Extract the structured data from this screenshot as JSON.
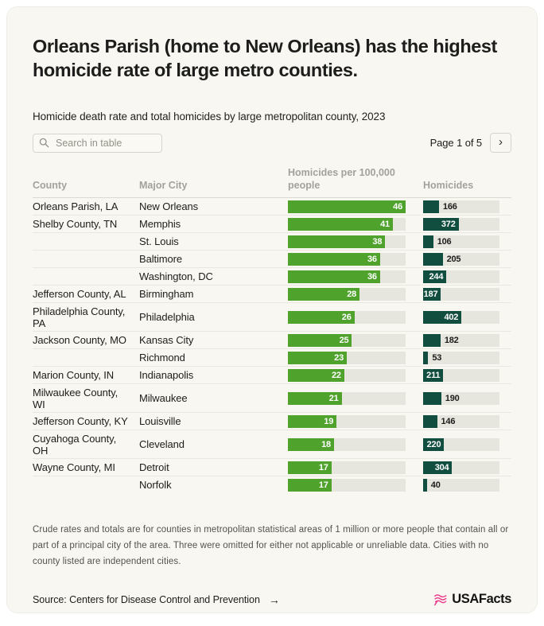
{
  "page": {
    "title": "Orleans Parish (home to New Orleans) has the highest homicide rate of large metro counties.",
    "subtitle": "Homicide death rate and total homicides by large metropolitan county, 2023",
    "search": {
      "placeholder": "Search in table"
    },
    "pagination": {
      "label": "Page 1 of 5",
      "next_glyph": "›"
    },
    "footnote": "Crude rates and totals are for counties in metropolitan statistical areas of 1 million or more people that contain all or part of a principal city of the area. Three were omitted for either not applicable or unreliable data. Cities with no county listed are independent cities.",
    "source": {
      "label": "Source: Centers for Disease Control and Prevention",
      "arrow_glyph": "→"
    },
    "brand": {
      "name": "USAFacts",
      "flag_color": "#ee3a8c"
    }
  },
  "colors": {
    "card_bg": "#f8f7f1",
    "rate_bar": "#4fa32c",
    "homicide_bar": "#114e3f",
    "bar_track": "#e6e5de"
  },
  "table": {
    "columns": [
      {
        "label": "County"
      },
      {
        "label": "Major City"
      },
      {
        "label": "Homicides per 100,000 people"
      },
      {
        "label": "Homicides"
      }
    ],
    "rows": [
      {
        "county": "Orleans Parish, LA",
        "city": "New Orleans",
        "rate": 46,
        "homicides": 166,
        "homicide_label_inside": false
      },
      {
        "county": "Shelby County, TN",
        "city": "Memphis",
        "rate": 41,
        "homicides": 372,
        "homicide_label_inside": true
      },
      {
        "county": "",
        "city": "St. Louis",
        "rate": 38,
        "homicides": 106,
        "homicide_label_inside": false
      },
      {
        "county": "",
        "city": "Baltimore",
        "rate": 36,
        "homicides": 205,
        "homicide_label_inside": false
      },
      {
        "county": "",
        "city": "Washington, DC",
        "rate": 36,
        "homicides": 244,
        "homicide_label_inside": true
      },
      {
        "county": "Jefferson County, AL",
        "city": "Birmingham",
        "rate": 28,
        "homicides": 187,
        "homicide_label_inside": true
      },
      {
        "county": "Philadelphia County, PA",
        "city": "Philadelphia",
        "rate": 26,
        "homicides": 402,
        "homicide_label_inside": true
      },
      {
        "county": "Jackson County, MO",
        "city": "Kansas City",
        "rate": 25,
        "homicides": 182,
        "homicide_label_inside": false
      },
      {
        "county": "",
        "city": "Richmond",
        "rate": 23,
        "homicides": 53,
        "homicide_label_inside": false
      },
      {
        "county": "Marion County, IN",
        "city": "Indianapolis",
        "rate": 22,
        "homicides": 211,
        "homicide_label_inside": true
      },
      {
        "county": "Milwaukee County, WI",
        "city": "Milwaukee",
        "rate": 21,
        "homicides": 190,
        "homicide_label_inside": false
      },
      {
        "county": "Jefferson County, KY",
        "city": "Louisville",
        "rate": 19,
        "homicides": 146,
        "homicide_label_inside": false
      },
      {
        "county": "Cuyahoga County, OH",
        "city": "Cleveland",
        "rate": 18,
        "homicides": 220,
        "homicide_label_inside": true
      },
      {
        "county": "Wayne County, MI",
        "city": "Detroit",
        "rate": 17,
        "homicides": 304,
        "homicide_label_inside": true
      },
      {
        "county": "",
        "city": "Norfolk",
        "rate": 17,
        "homicides": 40,
        "homicide_label_inside": false
      }
    ]
  },
  "chart_data": {
    "type": "bar",
    "title": "Homicide death rate and total homicides by large metropolitan county, 2023",
    "categories": [
      "New Orleans",
      "Memphis",
      "St. Louis",
      "Baltimore",
      "Washington, DC",
      "Birmingham",
      "Philadelphia",
      "Kansas City",
      "Richmond",
      "Indianapolis",
      "Milwaukee",
      "Louisville",
      "Cleveland",
      "Detroit",
      "Norfolk"
    ],
    "counties": [
      "Orleans Parish, LA",
      "Shelby County, TN",
      "",
      "",
      "",
      "Jefferson County, AL",
      "Philadelphia County, PA",
      "Jackson County, MO",
      "",
      "Marion County, IN",
      "Milwaukee County, WI",
      "Jefferson County, KY",
      "Cuyahoga County, OH",
      "Wayne County, MI",
      ""
    ],
    "series": [
      {
        "name": "Homicides per 100,000 people",
        "values": [
          46,
          41,
          38,
          36,
          36,
          28,
          26,
          25,
          23,
          22,
          21,
          19,
          18,
          17,
          17
        ],
        "axis_max": 46,
        "color": "#4fa32c"
      },
      {
        "name": "Homicides",
        "values": [
          166,
          372,
          106,
          205,
          244,
          187,
          402,
          182,
          53,
          211,
          190,
          146,
          220,
          304,
          40
        ],
        "axis_max": 800,
        "color": "#114e3f"
      }
    ],
    "orientation": "horizontal",
    "grid": false,
    "legend_position": "column-headers",
    "value_labels": "on-bars",
    "page": 1,
    "pages_total": 5
  }
}
